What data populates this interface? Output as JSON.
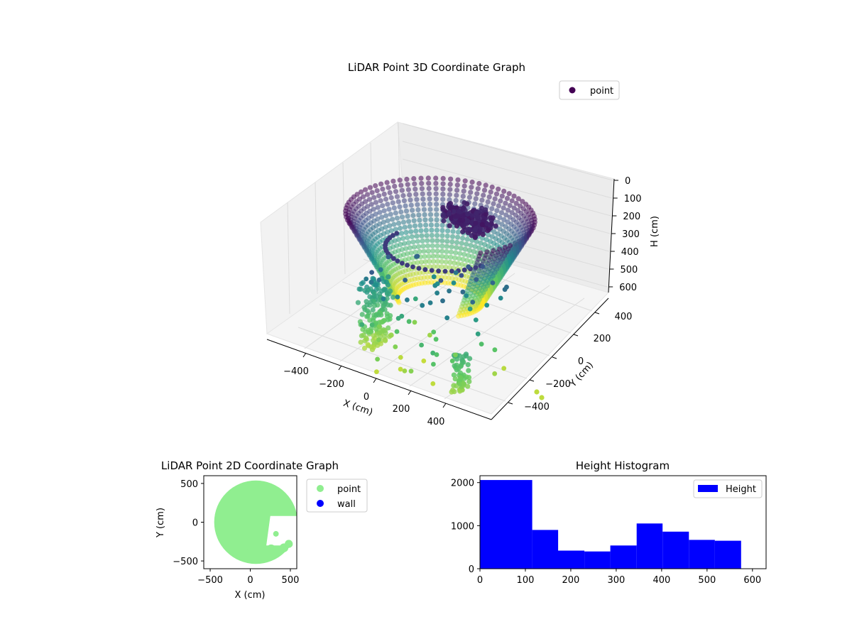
{
  "colors": {
    "bar": "#0000ff",
    "scatter2d": "#90ee90",
    "wall": "#0000ff",
    "pane": "#f2f2f2",
    "viridis_top": "#440154",
    "viridis_bottom": "#fde725"
  },
  "chart_data": [
    {
      "type": "scatter",
      "name": "3d",
      "title": "LiDAR Point 3D Coordinate Graph",
      "xlabel": "X (cm)",
      "ylabel": "Y (cm)",
      "zlabel": "H (cm)",
      "xticks": [
        "−400",
        "−200",
        "0",
        "200",
        "400"
      ],
      "yticks": [
        "−400",
        "−200",
        "0",
        "200",
        "400"
      ],
      "zticks": [
        "0",
        "100",
        "200",
        "300",
        "400",
        "500",
        "600"
      ],
      "zlim": [
        620,
        0
      ],
      "legend": [
        {
          "label": "point",
          "color": "#440154"
        }
      ],
      "legend_position": "top-right",
      "grid": true
    },
    {
      "type": "scatter",
      "name": "2d",
      "title": "LiDAR Point 2D Coordinate Graph",
      "xlabel": "X (cm)",
      "ylabel": "Y (cm)",
      "xticks": [
        "−500",
        "0",
        "500"
      ],
      "yticks": [
        "500",
        "0",
        "−500"
      ],
      "xlim": [
        -580,
        580
      ],
      "ylim": [
        -600,
        600
      ],
      "legend": [
        {
          "label": "point",
          "color": "#90ee90"
        },
        {
          "label": "wall",
          "color": "#0000ff"
        }
      ],
      "legend_position": "outside-right",
      "grid": false
    },
    {
      "type": "bar",
      "name": "histogram",
      "title": "Height Histogram",
      "xticks": [
        "0",
        "100",
        "200",
        "300",
        "400",
        "500",
        "600"
      ],
      "yticks": [
        "0",
        "1000",
        "2000"
      ],
      "xlim": [
        0,
        630
      ],
      "ylim": [
        0,
        2160
      ],
      "bins": [
        [
          0,
          115,
          2060
        ],
        [
          115,
          172,
          900
        ],
        [
          172,
          230,
          420
        ],
        [
          230,
          287,
          400
        ],
        [
          287,
          345,
          540
        ],
        [
          345,
          402,
          1050
        ],
        [
          402,
          460,
          860
        ],
        [
          460,
          517,
          670
        ],
        [
          517,
          575,
          650
        ]
      ],
      "legend": [
        {
          "label": "Height",
          "color": "#0000ff"
        }
      ],
      "legend_position": "top-right",
      "grid": false
    }
  ]
}
